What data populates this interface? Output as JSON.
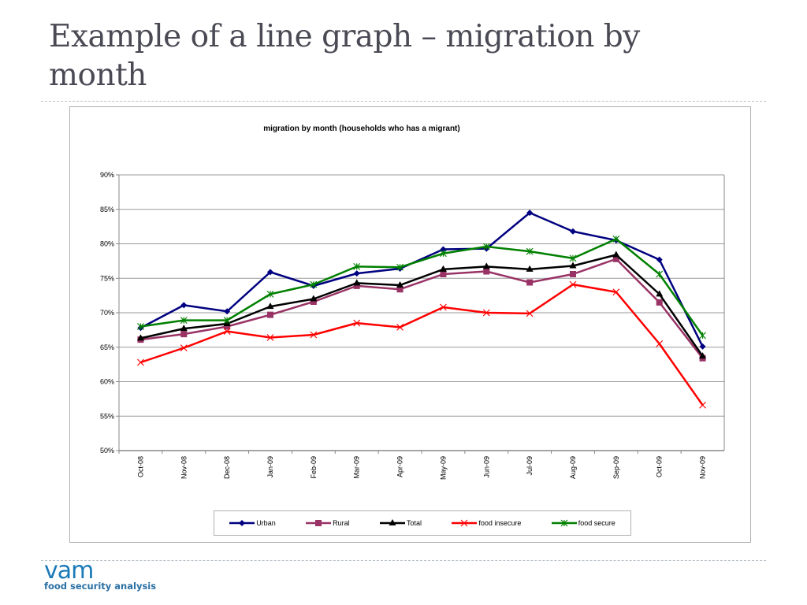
{
  "slide": {
    "title": "Example of a line graph – migration by month",
    "logo_main": "vam",
    "logo_sub": "food security analysis"
  },
  "chart_data": {
    "type": "line",
    "title": "migration by month (households who has a migrant)",
    "xlabel": "",
    "ylabel": "",
    "ylim": [
      0.5,
      0.9
    ],
    "yticks": [
      "50%",
      "55%",
      "60%",
      "65%",
      "70%",
      "75%",
      "80%",
      "85%",
      "90%"
    ],
    "grid": true,
    "legend_position": "bottom",
    "categories": [
      "Oct-08",
      "Nov-08",
      "Dec-08",
      "Jan-09",
      "Feb-09",
      "Mar-09",
      "Apr-09",
      "May-09",
      "Jun-09",
      "Jul-09",
      "Aug-09",
      "Sep-09",
      "Oct-09",
      "Nov-09"
    ],
    "series": [
      {
        "name": "Urban",
        "color": "#000080",
        "marker": "diamond",
        "values": [
          0.678,
          0.711,
          0.702,
          0.759,
          0.739,
          0.757,
          0.764,
          0.792,
          0.793,
          0.845,
          0.818,
          0.805,
          0.777,
          0.651
        ]
      },
      {
        "name": "Rural",
        "color": "#993366",
        "marker": "square",
        "values": [
          0.661,
          0.669,
          0.68,
          0.697,
          0.716,
          0.739,
          0.734,
          0.756,
          0.76,
          0.744,
          0.756,
          0.778,
          0.715,
          0.634
        ]
      },
      {
        "name": "Total",
        "color": "#000000",
        "marker": "triangle",
        "values": [
          0.663,
          0.677,
          0.684,
          0.709,
          0.72,
          0.743,
          0.74,
          0.763,
          0.767,
          0.763,
          0.768,
          0.784,
          0.727,
          0.637
        ]
      },
      {
        "name": "food insecure",
        "color": "#ff0000",
        "marker": "x",
        "values": [
          0.628,
          0.649,
          0.673,
          0.664,
          0.668,
          0.685,
          0.679,
          0.708,
          0.7,
          0.699,
          0.741,
          0.73,
          0.655,
          0.566
        ]
      },
      {
        "name": "food secure",
        "color": "#008000",
        "marker": "star",
        "values": [
          0.68,
          0.689,
          0.689,
          0.727,
          0.741,
          0.767,
          0.766,
          0.786,
          0.796,
          0.789,
          0.779,
          0.807,
          0.756,
          0.667
        ]
      }
    ]
  }
}
